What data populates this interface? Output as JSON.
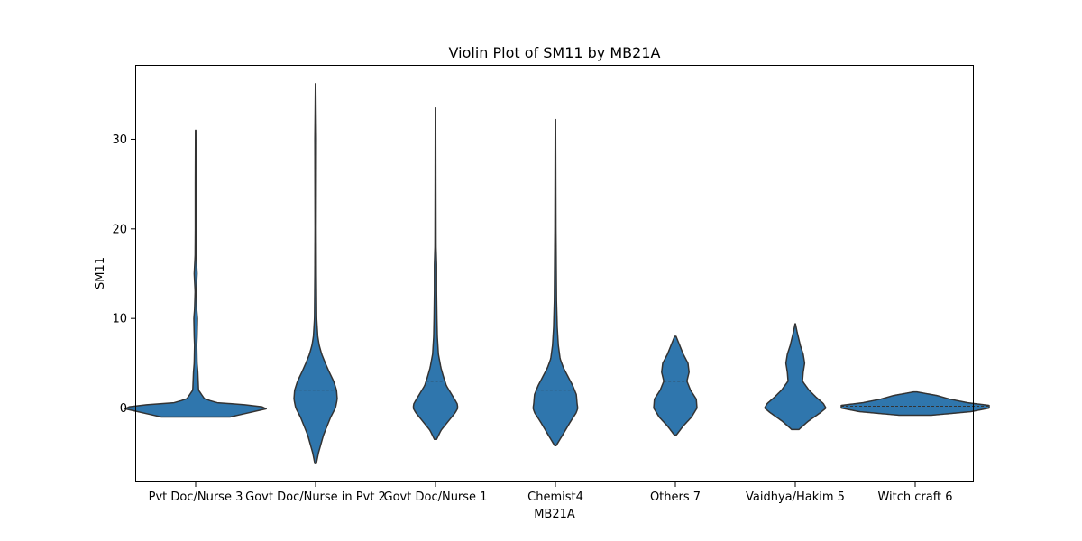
{
  "chart_data": {
    "type": "violin",
    "title": "Violin Plot of SM11 by MB21A",
    "xlabel": "MB21A",
    "ylabel": "SM11",
    "ylim": [
      -8.3,
      38.3
    ],
    "yticks": [
      0,
      10,
      20,
      30
    ],
    "grid": false,
    "legend": "none",
    "color": "#2f76ad",
    "edge_color": "#333333",
    "categories": [
      "Pvt Doc/Nurse 3",
      "Govt Doc/Nurse in Pvt 2",
      "Govt Doc/Nurse 1",
      "Chemist4",
      "Others 7",
      "Vaidhya/Hakim 5",
      "Witch craft 6"
    ],
    "violins": [
      {
        "min": -1,
        "max": 31,
        "q1": 0,
        "median": 0,
        "q3": 0,
        "profile": [
          [
            -1,
            0.95
          ],
          [
            -0.5,
            1.5
          ],
          [
            0,
            2.05
          ],
          [
            0.3,
            1.6
          ],
          [
            0.6,
            0.6
          ],
          [
            1,
            0.25
          ],
          [
            2,
            0.08
          ],
          [
            4,
            0.06
          ],
          [
            5,
            0.04
          ],
          [
            7,
            0.03
          ],
          [
            8,
            0.04
          ],
          [
            10,
            0.05
          ],
          [
            11,
            0.03
          ],
          [
            13,
            0.015
          ],
          [
            15,
            0.04
          ],
          [
            17,
            0.015
          ],
          [
            20,
            0.01
          ],
          [
            25,
            0.01
          ],
          [
            31,
            0.005
          ]
        ]
      },
      {
        "min": -6.2,
        "max": 36.2,
        "q1": 0,
        "median": 0,
        "q3": 2,
        "profile": [
          [
            -6.2,
            0.02
          ],
          [
            -5,
            0.08
          ],
          [
            -3,
            0.22
          ],
          [
            -1,
            0.42
          ],
          [
            0,
            0.55
          ],
          [
            1,
            0.6
          ],
          [
            2,
            0.58
          ],
          [
            3,
            0.5
          ],
          [
            4,
            0.38
          ],
          [
            5,
            0.27
          ],
          [
            6,
            0.17
          ],
          [
            7,
            0.1
          ],
          [
            8,
            0.06
          ],
          [
            10,
            0.03
          ],
          [
            15,
            0.02
          ],
          [
            20,
            0.015
          ],
          [
            30,
            0.02
          ],
          [
            36.2,
            0.005
          ]
        ]
      },
      {
        "min": -3.5,
        "max": 33.5,
        "q1": 0,
        "median": 0,
        "q3": 3,
        "profile": [
          [
            -3.5,
            0.03
          ],
          [
            -2.5,
            0.15
          ],
          [
            -1.5,
            0.35
          ],
          [
            -0.5,
            0.55
          ],
          [
            0,
            0.62
          ],
          [
            0.5,
            0.6
          ],
          [
            1.5,
            0.45
          ],
          [
            2.5,
            0.3
          ],
          [
            3.5,
            0.22
          ],
          [
            4.5,
            0.15
          ],
          [
            6,
            0.08
          ],
          [
            8,
            0.05
          ],
          [
            10,
            0.04
          ],
          [
            13,
            0.03
          ],
          [
            16,
            0.03
          ],
          [
            18,
            0.015
          ],
          [
            25,
            0.01
          ],
          [
            33.5,
            0.005
          ]
        ]
      },
      {
        "min": -4.2,
        "max": 32.2,
        "q1": 0,
        "median": 0,
        "q3": 2,
        "profile": [
          [
            -4.2,
            0.02
          ],
          [
            -3,
            0.2
          ],
          [
            -1.5,
            0.42
          ],
          [
            -0.5,
            0.58
          ],
          [
            0,
            0.62
          ],
          [
            0.5,
            0.6
          ],
          [
            1.5,
            0.58
          ],
          [
            2.5,
            0.48
          ],
          [
            3.5,
            0.35
          ],
          [
            4.5,
            0.22
          ],
          [
            5.5,
            0.13
          ],
          [
            7,
            0.08
          ],
          [
            9,
            0.05
          ],
          [
            12,
            0.03
          ],
          [
            20,
            0.015
          ],
          [
            32.2,
            0.005
          ]
        ]
      },
      {
        "min": -3,
        "max": 8,
        "q1": 0,
        "median": 0,
        "q3": 3,
        "profile": [
          [
            -3,
            0.03
          ],
          [
            -2,
            0.22
          ],
          [
            -1,
            0.45
          ],
          [
            0,
            0.6
          ],
          [
            1,
            0.58
          ],
          [
            2,
            0.42
          ],
          [
            3,
            0.32
          ],
          [
            4,
            0.38
          ],
          [
            5,
            0.35
          ],
          [
            6,
            0.22
          ],
          [
            7,
            0.12
          ],
          [
            8,
            0.02
          ]
        ]
      },
      {
        "min": -2.4,
        "max": 9.4,
        "q1": 0,
        "median": 0,
        "q3": 0,
        "profile": [
          [
            -2.4,
            0.1
          ],
          [
            -1.5,
            0.35
          ],
          [
            -0.5,
            0.7
          ],
          [
            0,
            0.85
          ],
          [
            0.5,
            0.78
          ],
          [
            1.2,
            0.58
          ],
          [
            2,
            0.38
          ],
          [
            3,
            0.2
          ],
          [
            4,
            0.22
          ],
          [
            5,
            0.26
          ],
          [
            6,
            0.22
          ],
          [
            7,
            0.14
          ],
          [
            8.5,
            0.05
          ],
          [
            9.4,
            0.005
          ]
        ]
      },
      {
        "min": -0.8,
        "max": 1.8,
        "q1": 0,
        "median": 0,
        "q3": 0.2,
        "profile": [
          [
            -0.8,
            0.45
          ],
          [
            -0.4,
            1.55
          ],
          [
            0,
            2.05
          ],
          [
            0.3,
            2.05
          ],
          [
            0.6,
            1.45
          ],
          [
            1,
            0.95
          ],
          [
            1.4,
            0.6
          ],
          [
            1.8,
            0.05
          ]
        ]
      }
    ]
  }
}
